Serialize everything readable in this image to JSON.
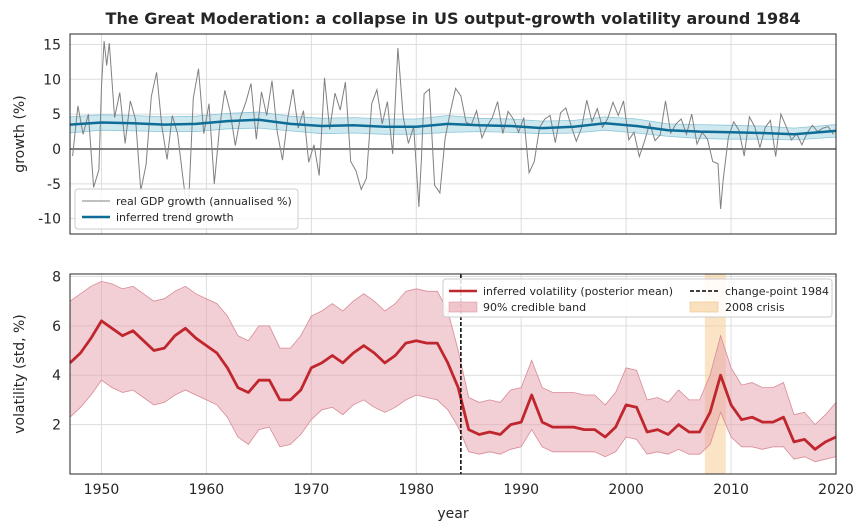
{
  "chart_data": [
    {
      "type": "line",
      "title": "The Great Moderation: a collapse in US output-growth volatility around 1984",
      "xlabel": "",
      "ylabel": "growth (%)",
      "xlim": [
        1947,
        2020
      ],
      "ylim": [
        -12.2,
        16.5
      ],
      "yticks": [
        -10,
        -5,
        0,
        5,
        10,
        15
      ],
      "grid": true,
      "legend_position": "lower-left",
      "series": [
        {
          "name": "real GDP growth (annualised %)",
          "color": "#808080",
          "x": [
            1947.25,
            1947.75,
            1948.25,
            1948.75,
            1949.25,
            1949.75,
            1950.0,
            1950.25,
            1950.5,
            1950.75,
            1951.25,
            1951.75,
            1952.25,
            1952.75,
            1953.25,
            1953.75,
            1954.25,
            1954.75,
            1955.25,
            1955.75,
            1956.25,
            1956.75,
            1957.25,
            1957.75,
            1958.25,
            1958.75,
            1959.25,
            1959.75,
            1960.25,
            1960.75,
            1961.25,
            1961.75,
            1962.25,
            1962.75,
            1963.25,
            1963.75,
            1964.25,
            1964.75,
            1965.25,
            1965.75,
            1966.25,
            1966.75,
            1967.25,
            1967.75,
            1968.25,
            1968.75,
            1969.25,
            1969.75,
            1970.25,
            1970.75,
            1971.25,
            1971.75,
            1972.25,
            1972.75,
            1973.25,
            1973.75,
            1974.25,
            1974.75,
            1975.25,
            1975.75,
            1976.25,
            1976.75,
            1977.25,
            1977.75,
            1978.25,
            1978.75,
            1979.25,
            1979.75,
            1980.25,
            1980.5,
            1980.75,
            1981.25,
            1981.75,
            1982.25,
            1982.75,
            1983.25,
            1983.75,
            1984.25,
            1984.75,
            1985.25,
            1985.75,
            1986.25,
            1986.75,
            1987.25,
            1987.75,
            1988.25,
            1988.75,
            1989.25,
            1989.75,
            1990.25,
            1990.75,
            1991.25,
            1991.75,
            1992.25,
            1992.75,
            1993.25,
            1993.75,
            1994.25,
            1994.75,
            1995.25,
            1995.75,
            1996.25,
            1996.75,
            1997.25,
            1997.75,
            1998.25,
            1998.75,
            1999.25,
            1999.75,
            2000.25,
            2000.75,
            2001.25,
            2001.75,
            2002.25,
            2002.75,
            2003.25,
            2003.75,
            2004.25,
            2004.75,
            2005.25,
            2005.75,
            2006.25,
            2006.75,
            2007.25,
            2007.75,
            2008.25,
            2008.75,
            2009.0,
            2009.25,
            2009.75,
            2010.25,
            2010.75,
            2011.25,
            2011.75,
            2012.25,
            2012.75,
            2013.25,
            2013.75,
            2014.25,
            2014.75,
            2015.25,
            2015.75,
            2016.25,
            2016.75,
            2017.25,
            2017.75,
            2018.25,
            2018.75,
            2019.25,
            2019.75
          ],
          "y": [
            -1.0,
            6.2,
            2.1,
            5.0,
            -5.5,
            -3.0,
            9.0,
            15.5,
            12.0,
            15.2,
            4.5,
            8.1,
            0.8,
            6.9,
            4.2,
            -6.0,
            -2.2,
            7.5,
            11.0,
            3.3,
            -1.5,
            4.8,
            2.2,
            -4.0,
            -9.8,
            7.3,
            11.5,
            2.2,
            6.5,
            -5.0,
            3.0,
            8.4,
            5.5,
            0.5,
            4.6,
            6.7,
            9.4,
            1.4,
            8.2,
            4.8,
            9.8,
            2.5,
            -1.6,
            4.4,
            8.6,
            3.0,
            5.5,
            -1.9,
            0.6,
            -3.8,
            10.2,
            2.8,
            8.0,
            5.6,
            9.6,
            -1.8,
            -3.1,
            -5.8,
            -4.2,
            6.5,
            8.5,
            3.6,
            6.8,
            -0.7,
            14.5,
            4.6,
            0.8,
            3.2,
            -8.3,
            -1.2,
            7.9,
            8.6,
            -5.2,
            -6.3,
            1.5,
            5.4,
            8.7,
            7.6,
            3.8,
            3.5,
            5.5,
            1.6,
            3.3,
            4.5,
            6.8,
            2.2,
            5.4,
            4.3,
            2.4,
            4.5,
            -3.4,
            -1.8,
            3.1,
            4.3,
            4.8,
            0.9,
            5.2,
            5.9,
            3.4,
            1.1,
            3.0,
            7.0,
            3.9,
            5.8,
            3.1,
            4.4,
            6.7,
            4.8,
            6.9,
            1.3,
            2.4,
            -1.1,
            1.1,
            3.7,
            1.2,
            2.0,
            6.9,
            2.3,
            3.6,
            4.3,
            2.1,
            5.0,
            0.7,
            2.4,
            1.4,
            -1.8,
            -2.1,
            -8.6,
            -4.4,
            1.7,
            3.9,
            2.7,
            -1.0,
            4.6,
            3.2,
            0.2,
            3.1,
            4.1,
            -1.1,
            5.0,
            3.2,
            1.3,
            2.2,
            0.6,
            2.3,
            3.4,
            2.5,
            3.0,
            3.2,
            2.1
          ]
        },
        {
          "name": "inferred trend growth",
          "color": "#0e6d96",
          "band_color": "#add8e6",
          "x": [
            1947,
            1950,
            1953,
            1956,
            1959,
            1962,
            1965,
            1968,
            1971,
            1974,
            1977,
            1980,
            1983,
            1986,
            1989,
            1992,
            1995,
            1998,
            2001,
            2004,
            2007,
            2010,
            2013,
            2016,
            2020
          ],
          "y": [
            3.5,
            3.8,
            3.7,
            3.5,
            3.6,
            4.0,
            4.2,
            3.6,
            3.3,
            3.4,
            3.2,
            3.2,
            3.6,
            3.4,
            3.3,
            3.0,
            3.2,
            3.7,
            3.3,
            2.7,
            2.5,
            2.4,
            2.3,
            2.1,
            2.6
          ],
          "lower": [
            2.3,
            2.7,
            2.6,
            2.5,
            2.5,
            2.9,
            3.0,
            2.6,
            2.2,
            2.3,
            2.1,
            2.1,
            2.4,
            2.5,
            2.4,
            2.2,
            2.3,
            2.7,
            2.3,
            1.8,
            1.5,
            1.4,
            1.4,
            1.3,
            1.7
          ],
          "upper": [
            4.6,
            4.9,
            4.8,
            4.6,
            4.7,
            5.1,
            5.3,
            4.7,
            4.4,
            4.5,
            4.3,
            4.3,
            4.8,
            4.4,
            4.3,
            4.0,
            4.1,
            4.6,
            4.3,
            3.6,
            3.5,
            3.4,
            3.3,
            3.0,
            3.5
          ]
        }
      ]
    },
    {
      "type": "line",
      "title": "",
      "xlabel": "year",
      "ylabel": "volatility (std, %)",
      "xlim": [
        1947,
        2020
      ],
      "ylim": [
        0,
        8.1
      ],
      "xticks": [
        1950,
        1960,
        1970,
        1980,
        1990,
        2000,
        2010,
        2020
      ],
      "yticks": [
        2,
        4,
        6,
        8
      ],
      "grid": true,
      "legend_position": "top-right",
      "legend_columns": 2,
      "series": [
        {
          "name": "inferred volatility (posterior mean)",
          "color": "#c0262d",
          "x": [
            1947,
            1948,
            1949,
            1950,
            1951,
            1952,
            1953,
            1954,
            1955,
            1956,
            1957,
            1958,
            1959,
            1960,
            1961,
            1962,
            1963,
            1964,
            1965,
            1966,
            1967,
            1968,
            1969,
            1970,
            1971,
            1972,
            1973,
            1974,
            1975,
            1976,
            1977,
            1978,
            1979,
            1980,
            1981,
            1982,
            1983,
            1984,
            1985,
            1986,
            1987,
            1988,
            1989,
            1990,
            1991,
            1992,
            1993,
            1994,
            1995,
            1996,
            1997,
            1998,
            1999,
            2000,
            2001,
            2002,
            2003,
            2004,
            2005,
            2006,
            2007,
            2008,
            2009,
            2010,
            2011,
            2012,
            2013,
            2014,
            2015,
            2016,
            2017,
            2018,
            2019,
            2020
          ],
          "y": [
            4.5,
            4.9,
            5.5,
            6.2,
            5.9,
            5.6,
            5.8,
            5.4,
            5.0,
            5.1,
            5.6,
            5.9,
            5.5,
            5.2,
            4.9,
            4.3,
            3.5,
            3.3,
            3.8,
            3.8,
            3.0,
            3.0,
            3.4,
            4.3,
            4.5,
            4.8,
            4.5,
            4.9,
            5.2,
            4.9,
            4.5,
            4.8,
            5.3,
            5.4,
            5.3,
            5.3,
            4.5,
            3.5,
            1.8,
            1.6,
            1.7,
            1.6,
            2.0,
            2.1,
            3.2,
            2.1,
            1.9,
            1.9,
            1.9,
            1.8,
            1.8,
            1.5,
            1.9,
            2.8,
            2.7,
            1.7,
            1.8,
            1.6,
            2.0,
            1.7,
            1.7,
            2.5,
            4.0,
            2.8,
            2.2,
            2.3,
            2.1,
            2.1,
            2.3,
            1.3,
            1.4,
            1.0,
            1.3,
            1.5
          ],
          "lower": [
            2.3,
            2.7,
            3.2,
            3.8,
            3.5,
            3.3,
            3.4,
            3.1,
            2.8,
            2.9,
            3.2,
            3.4,
            3.2,
            3.0,
            2.8,
            2.3,
            1.5,
            1.2,
            1.8,
            1.9,
            1.1,
            1.2,
            1.6,
            2.2,
            2.6,
            2.7,
            2.4,
            2.8,
            3.0,
            2.7,
            2.5,
            2.7,
            3.0,
            3.2,
            3.1,
            3.0,
            2.6,
            1.9,
            0.9,
            0.8,
            0.9,
            0.8,
            1.0,
            1.1,
            1.8,
            1.1,
            0.9,
            0.9,
            0.9,
            0.9,
            0.9,
            0.7,
            0.9,
            1.5,
            1.4,
            0.8,
            0.9,
            0.8,
            1.0,
            0.8,
            0.8,
            1.2,
            2.5,
            1.5,
            1.1,
            1.1,
            1.0,
            1.1,
            1.1,
            0.6,
            0.7,
            0.5,
            0.6,
            0.7
          ],
          "upper": [
            7.0,
            7.3,
            7.6,
            7.8,
            7.7,
            7.5,
            7.6,
            7.3,
            7.0,
            7.1,
            7.4,
            7.6,
            7.3,
            7.1,
            6.9,
            6.4,
            5.6,
            5.4,
            6.0,
            6.0,
            5.1,
            5.1,
            5.6,
            6.4,
            6.6,
            6.9,
            6.6,
            7.0,
            7.3,
            7.0,
            6.6,
            6.9,
            7.4,
            7.5,
            7.4,
            7.4,
            6.6,
            5.0,
            3.1,
            2.9,
            3.0,
            2.9,
            3.4,
            3.5,
            4.6,
            3.5,
            3.3,
            3.3,
            3.3,
            3.2,
            3.2,
            2.8,
            3.3,
            4.3,
            4.2,
            3.0,
            3.1,
            2.9,
            3.4,
            3.0,
            3.0,
            4.0,
            5.6,
            4.3,
            3.6,
            3.7,
            3.5,
            3.5,
            3.7,
            2.4,
            2.5,
            2.0,
            2.4,
            2.9
          ]
        },
        {
          "name": "90% credible band",
          "color": "#e6a0aa"
        },
        {
          "name": "change-point 1984",
          "color": "#000000",
          "x": 1984.25
        },
        {
          "name": "2008 crisis",
          "color": "#f5cd96",
          "range": [
            2007.5,
            2009.5
          ]
        }
      ]
    }
  ]
}
